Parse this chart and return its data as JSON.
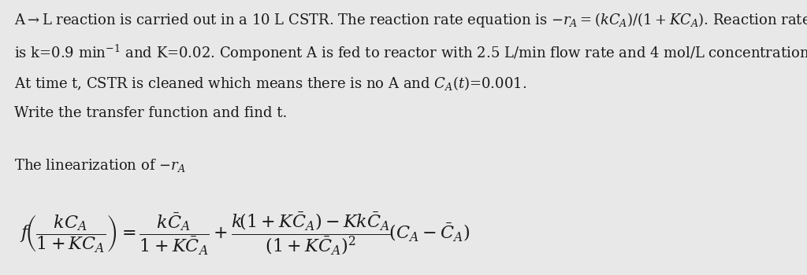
{
  "background_color": "#e8e8e8",
  "text_color": "#1a1a1a",
  "font_size_text": 13.0,
  "font_size_formula": 16,
  "fig_width": 10.24,
  "fig_height": 3.5
}
